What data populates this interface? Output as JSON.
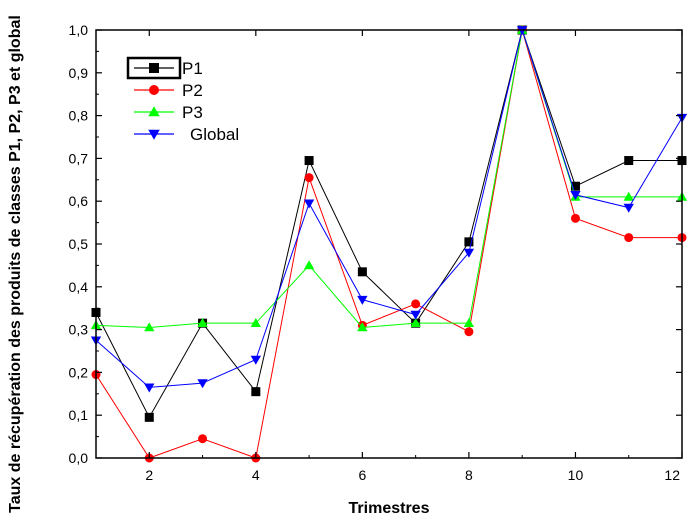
{
  "chart_data": {
    "type": "line",
    "title": "",
    "xlabel": "Trimestres",
    "ylabel": "Taux de récupération des produits de classes P1, P2, P3 et global",
    "xlim": [
      1,
      12
    ],
    "ylim": [
      0,
      1.0
    ],
    "x_ticks": [
      "2",
      "4",
      "6",
      "8",
      "10",
      "12"
    ],
    "y_ticks": [
      "0,0",
      "0,1",
      "0,2",
      "0,3",
      "0,4",
      "0,5",
      "0,6",
      "0,7",
      "0,8",
      "0,9",
      "1,0"
    ],
    "grid": false,
    "legend_position": "top-left",
    "x": [
      1,
      2,
      3,
      4,
      5,
      6,
      7,
      8,
      9,
      10,
      11,
      12
    ],
    "series": [
      {
        "name": "P1",
        "color": "#000000",
        "marker": "square",
        "values": [
          0.34,
          0.095,
          0.315,
          0.155,
          0.695,
          0.435,
          0.315,
          0.505,
          1.0,
          0.635,
          0.695,
          0.695
        ]
      },
      {
        "name": "P2",
        "color": "#ff0000",
        "marker": "circle",
        "values": [
          0.195,
          0.0,
          0.045,
          0.0,
          0.655,
          0.31,
          0.36,
          0.295,
          1.0,
          0.56,
          0.515,
          0.515
        ]
      },
      {
        "name": "P3",
        "color": "#00ff00",
        "marker": "triangle-up",
        "values": [
          0.31,
          0.305,
          0.315,
          0.315,
          0.45,
          0.305,
          0.315,
          0.315,
          1.0,
          0.61,
          0.61,
          0.61
        ]
      },
      {
        "name": "Global",
        "color": "#0000ff",
        "marker": "triangle-down",
        "values": [
          0.275,
          0.165,
          0.175,
          0.23,
          0.595,
          0.37,
          0.335,
          0.48,
          1.0,
          0.615,
          0.585,
          0.795
        ]
      }
    ]
  }
}
